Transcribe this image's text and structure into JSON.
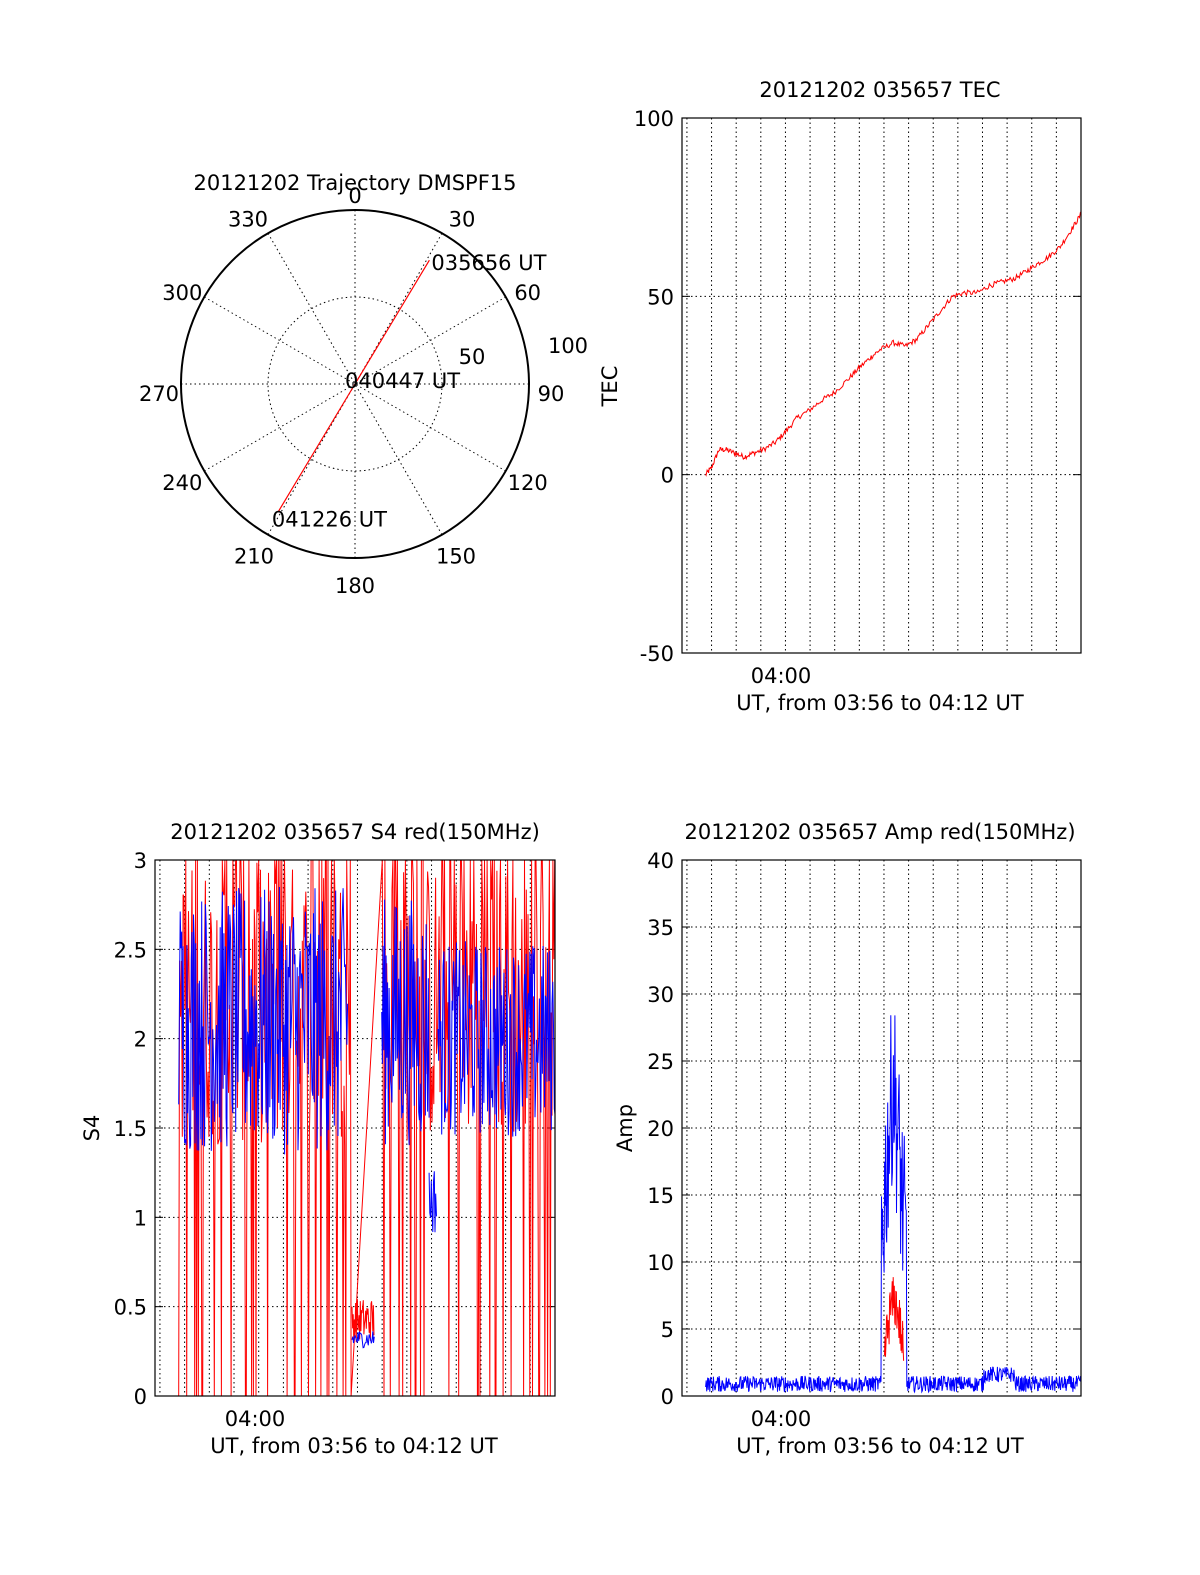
{
  "chart_data": [
    {
      "id": "polar",
      "type": "polar",
      "title": "20121202 Trajectory DMSPF15",
      "angle_labels": [
        "0",
        "30",
        "60",
        "90",
        "120",
        "150",
        "180",
        "210",
        "240",
        "270",
        "300",
        "330"
      ],
      "radius_labels": [
        "50",
        "100"
      ],
      "trajectory": {
        "points": [
          {
            "az": 31,
            "r": 83,
            "label": "035656 UT"
          },
          {
            "az": 0,
            "r": 0,
            "label": "040447 UT"
          },
          {
            "az": 211,
            "r": 86,
            "label": "041226 UT"
          }
        ],
        "color": "#ff0000"
      }
    },
    {
      "id": "tec",
      "type": "line",
      "title": "20121202 035657 TEC",
      "xlabel": "UT, from 03:56 to 04:12 UT",
      "ylabel": "TEC",
      "xlim": [
        3.93,
        4.2
      ],
      "ylim": [
        -50,
        100
      ],
      "yticks": [
        "100",
        "50",
        "0",
        "-50"
      ],
      "xtick_label": "04:00",
      "series": [
        {
          "color": "#ff0000",
          "x": [
            3.946,
            3.95,
            3.955,
            3.96,
            3.966,
            3.972,
            3.978,
            3.985,
            3.993,
            4.0,
            4.008,
            4.016,
            4.025,
            4.033,
            4.043,
            4.05,
            4.058,
            4.064,
            4.073,
            4.081,
            4.089,
            4.097,
            4.105,
            4.113,
            4.121,
            4.13,
            4.138,
            4.146,
            4.155,
            4.163,
            4.17,
            4.178,
            4.186,
            4.194,
            4.2
          ],
          "y": [
            0,
            2,
            7,
            7,
            6,
            5,
            6,
            7,
            9,
            12,
            16,
            18,
            21,
            23,
            27,
            30,
            33,
            35,
            37,
            36,
            38,
            42,
            46,
            50,
            51,
            51,
            53,
            54,
            55,
            57,
            59,
            61,
            64,
            69,
            73
          ]
        }
      ]
    },
    {
      "id": "s4",
      "type": "line",
      "title": "20121202 035657 S4 red(150MHz)",
      "xlabel": "UT, from 03:56 to 04:12 UT",
      "ylabel": "S4",
      "xlim": [
        3.93,
        4.2
      ],
      "ylim": [
        0,
        3
      ],
      "yticks": [
        "3",
        "2.5",
        "2",
        "1.5",
        "1",
        "0.5",
        "0"
      ],
      "xtick_label": "04:00",
      "series": [
        {
          "name": "",
          "color": "#0000ff",
          "x": [
            3.946,
            4.06,
            4.063,
            4.078,
            4.083,
            4.115,
            4.12,
            4.2
          ],
          "y": [
            2.1,
            2.1,
            0.35,
            0.3,
            2.1,
            1.8,
            0.95,
            2.0
          ],
          "noise": 0.7,
          "gaps": [
            [
              4.065,
              4.067
            ]
          ]
        },
        {
          "name": "",
          "color": "#ff0000",
          "x": [
            3.946,
            4.2
          ],
          "y": [
            2.2,
            2.2
          ]
        }
      ]
    },
    {
      "id": "amp",
      "type": "line",
      "title": "20121202 035657 Amp red(150MHz)",
      "xlabel": "UT, from 03:56 to 04:12 UT",
      "ylabel": "Amp",
      "xlim": [
        3.93,
        4.2
      ],
      "ylim": [
        0,
        40
      ],
      "yticks": [
        "40",
        "35",
        "30",
        "25",
        "20",
        "15",
        "10",
        "5",
        "0"
      ],
      "xtick_label": "04:00",
      "series": [
        {
          "name": "",
          "color": "#0000ff",
          "x": [
            3.946,
            4.065,
            4.067,
            4.08,
            4.082,
            4.2
          ],
          "y": [
            1,
            1,
            20,
            31,
            1,
            1
          ]
        },
        {
          "name": "",
          "color": "#ff0000",
          "x": [
            4.067,
            4.072,
            4.078,
            4.08
          ],
          "y": [
            3,
            10,
            6,
            3
          ]
        }
      ]
    }
  ]
}
